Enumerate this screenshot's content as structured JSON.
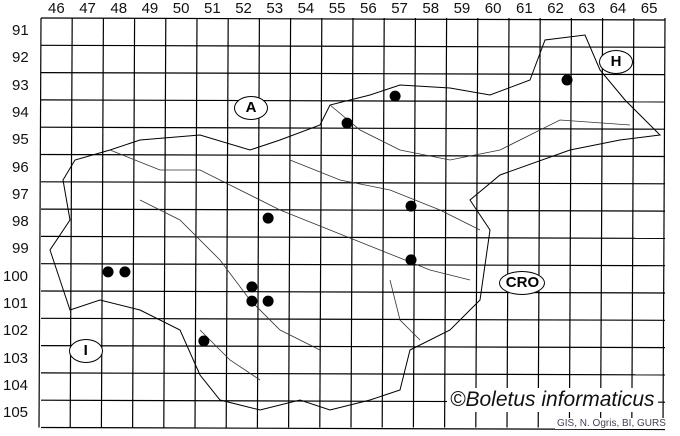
{
  "map": {
    "columns": [
      "46",
      "47",
      "48",
      "49",
      "50",
      "51",
      "52",
      "53",
      "54",
      "55",
      "56",
      "57",
      "58",
      "59",
      "60",
      "61",
      "62",
      "63",
      "64",
      "65"
    ],
    "rows": [
      "91",
      "92",
      "93",
      "94",
      "95",
      "96",
      "97",
      "98",
      "99",
      "100",
      "101",
      "102",
      "103",
      "104",
      "105"
    ],
    "country_labels": [
      {
        "text": "A",
        "col": 52.7,
        "row": 94.3
      },
      {
        "text": "H",
        "col": 64.4,
        "row": 92.6
      },
      {
        "text": "CRO",
        "col": 61.4,
        "row": 100.7
      },
      {
        "text": "I",
        "col": 47.4,
        "row": 103.2
      }
    ],
    "records": [
      {
        "col": 48.15,
        "row": 100.3
      },
      {
        "col": 48.69,
        "row": 100.3
      },
      {
        "col": 52.76,
        "row": 100.85
      },
      {
        "col": 52.76,
        "row": 101.37
      },
      {
        "col": 53.28,
        "row": 101.37
      },
      {
        "col": 51.22,
        "row": 102.83
      },
      {
        "col": 53.28,
        "row": 98.33
      },
      {
        "col": 55.81,
        "row": 94.85
      },
      {
        "col": 57.35,
        "row": 93.86
      },
      {
        "col": 57.86,
        "row": 97.89
      },
      {
        "col": 57.86,
        "row": 99.86
      },
      {
        "col": 62.86,
        "row": 93.27
      }
    ],
    "marker_color": "#000000",
    "credit": "©Boletus informaticus",
    "source": "GIS, N. Ogris, BI, GURS"
  }
}
